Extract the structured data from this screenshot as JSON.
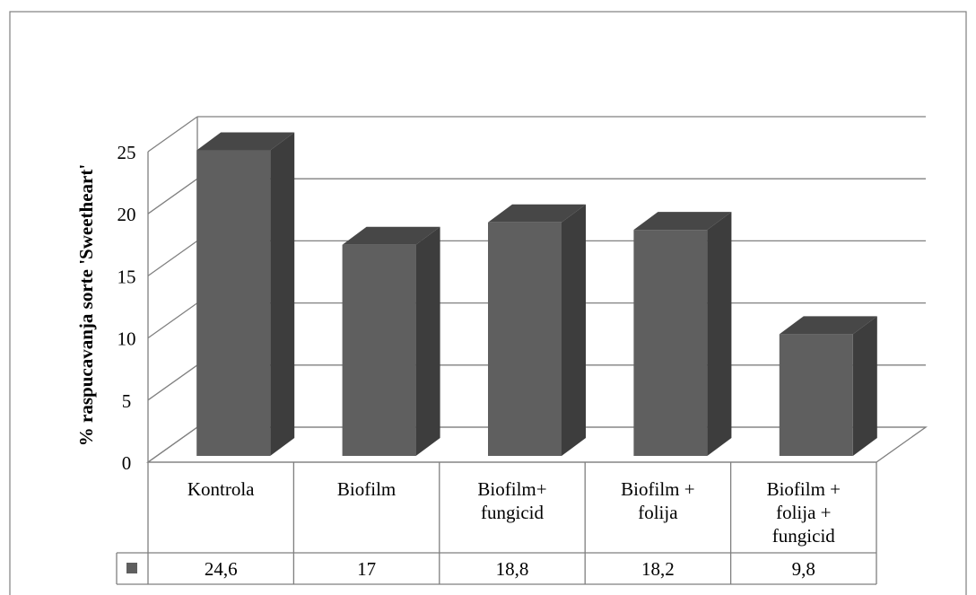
{
  "chart_data": {
    "type": "bar",
    "style": "3d-column",
    "ylabel": "% raspucavanja sorte 'Sweetheart'",
    "ylim": [
      0,
      25
    ],
    "yticks": [
      0,
      5,
      10,
      15,
      20,
      25
    ],
    "categories": [
      [
        "Kontrola"
      ],
      [
        "Biofilm"
      ],
      [
        "Biofilm+",
        "fungicid"
      ],
      [
        "Biofilm +",
        "folija"
      ],
      [
        "Biofilm +",
        "folija +",
        "fungicid"
      ]
    ],
    "series": [
      {
        "values": [
          24.6,
          17,
          18.8,
          18.2,
          9.8
        ],
        "value_labels": [
          "24,6",
          "17",
          "18,8",
          "18,2",
          "9,8"
        ]
      }
    ],
    "grid": true,
    "data_table": true,
    "colors": {
      "bar_front": "#5f5f5f",
      "bar_side": "#3d3d3d",
      "bar_top": "#474747",
      "gridline": "#808080",
      "frame": "#7f7f7f"
    }
  }
}
